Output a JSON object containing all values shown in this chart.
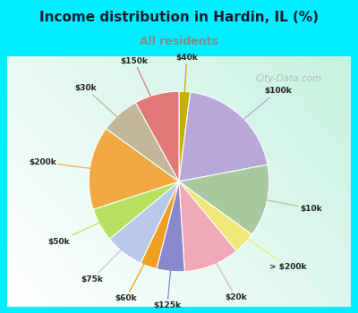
{
  "title": "Income distribution in Hardin, IL (%)",
  "subtitle": "All residents",
  "title_color": "#1a1a2e",
  "subtitle_color": "#888888",
  "bg_cyan": "#00eeff",
  "watermark": "City-Data.com",
  "labels": [
    "$40k",
    "$100k",
    "$10k",
    "> $200k",
    "$20k",
    "$125k",
    "$60k",
    "$75k",
    "$50k",
    "$200k",
    "$30k",
    "$150k"
  ],
  "values": [
    2,
    20,
    13,
    4,
    10,
    5,
    3,
    7,
    6,
    15,
    7,
    8
  ],
  "colors": [
    "#c8b000",
    "#b8a8d8",
    "#a8c8a0",
    "#f0e878",
    "#f0a8b8",
    "#8888cc",
    "#f0a020",
    "#b8c8e8",
    "#b8e060",
    "#f0a840",
    "#c0b898",
    "#e07878"
  ],
  "line_colors": [
    "#c8b000",
    "#b8a8d8",
    "#a8c8a0",
    "#f0e878",
    "#f0a8b8",
    "#8888cc",
    "#f0a020",
    "#b8c8e8",
    "#b8e060",
    "#f0a840",
    "#c0b898",
    "#e07878"
  ]
}
